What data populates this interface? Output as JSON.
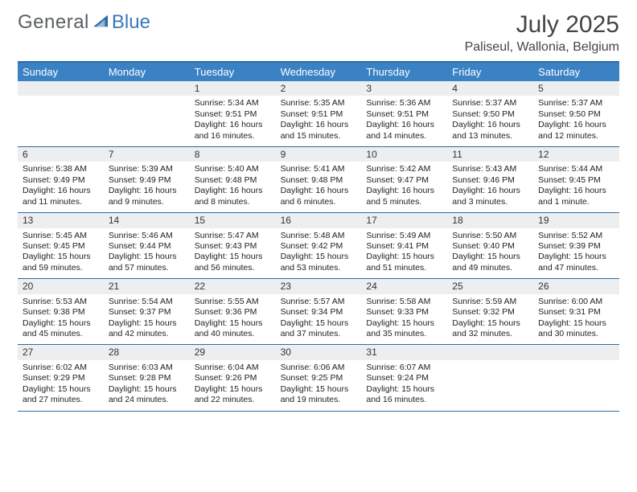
{
  "brand": {
    "part1": "General",
    "part2": "Blue"
  },
  "title": "July 2025",
  "location": "Paliseul, Wallonia, Belgium",
  "colors": {
    "header_bar": "#3a82c4",
    "rule": "#2f6aa8",
    "daynum_bg": "#eceeef",
    "text": "#222222",
    "brand_gray": "#5a5f63",
    "brand_blue": "#3a79b7"
  },
  "dow": [
    "Sunday",
    "Monday",
    "Tuesday",
    "Wednesday",
    "Thursday",
    "Friday",
    "Saturday"
  ],
  "weeks": [
    [
      null,
      null,
      {
        "n": "1",
        "sr": "5:34 AM",
        "ss": "9:51 PM",
        "dl": "16 hours and 16 minutes."
      },
      {
        "n": "2",
        "sr": "5:35 AM",
        "ss": "9:51 PM",
        "dl": "16 hours and 15 minutes."
      },
      {
        "n": "3",
        "sr": "5:36 AM",
        "ss": "9:51 PM",
        "dl": "16 hours and 14 minutes."
      },
      {
        "n": "4",
        "sr": "5:37 AM",
        "ss": "9:50 PM",
        "dl": "16 hours and 13 minutes."
      },
      {
        "n": "5",
        "sr": "5:37 AM",
        "ss": "9:50 PM",
        "dl": "16 hours and 12 minutes."
      }
    ],
    [
      {
        "n": "6",
        "sr": "5:38 AM",
        "ss": "9:49 PM",
        "dl": "16 hours and 11 minutes."
      },
      {
        "n": "7",
        "sr": "5:39 AM",
        "ss": "9:49 PM",
        "dl": "16 hours and 9 minutes."
      },
      {
        "n": "8",
        "sr": "5:40 AM",
        "ss": "9:48 PM",
        "dl": "16 hours and 8 minutes."
      },
      {
        "n": "9",
        "sr": "5:41 AM",
        "ss": "9:48 PM",
        "dl": "16 hours and 6 minutes."
      },
      {
        "n": "10",
        "sr": "5:42 AM",
        "ss": "9:47 PM",
        "dl": "16 hours and 5 minutes."
      },
      {
        "n": "11",
        "sr": "5:43 AM",
        "ss": "9:46 PM",
        "dl": "16 hours and 3 minutes."
      },
      {
        "n": "12",
        "sr": "5:44 AM",
        "ss": "9:45 PM",
        "dl": "16 hours and 1 minute."
      }
    ],
    [
      {
        "n": "13",
        "sr": "5:45 AM",
        "ss": "9:45 PM",
        "dl": "15 hours and 59 minutes."
      },
      {
        "n": "14",
        "sr": "5:46 AM",
        "ss": "9:44 PM",
        "dl": "15 hours and 57 minutes."
      },
      {
        "n": "15",
        "sr": "5:47 AM",
        "ss": "9:43 PM",
        "dl": "15 hours and 56 minutes."
      },
      {
        "n": "16",
        "sr": "5:48 AM",
        "ss": "9:42 PM",
        "dl": "15 hours and 53 minutes."
      },
      {
        "n": "17",
        "sr": "5:49 AM",
        "ss": "9:41 PM",
        "dl": "15 hours and 51 minutes."
      },
      {
        "n": "18",
        "sr": "5:50 AM",
        "ss": "9:40 PM",
        "dl": "15 hours and 49 minutes."
      },
      {
        "n": "19",
        "sr": "5:52 AM",
        "ss": "9:39 PM",
        "dl": "15 hours and 47 minutes."
      }
    ],
    [
      {
        "n": "20",
        "sr": "5:53 AM",
        "ss": "9:38 PM",
        "dl": "15 hours and 45 minutes."
      },
      {
        "n": "21",
        "sr": "5:54 AM",
        "ss": "9:37 PM",
        "dl": "15 hours and 42 minutes."
      },
      {
        "n": "22",
        "sr": "5:55 AM",
        "ss": "9:36 PM",
        "dl": "15 hours and 40 minutes."
      },
      {
        "n": "23",
        "sr": "5:57 AM",
        "ss": "9:34 PM",
        "dl": "15 hours and 37 minutes."
      },
      {
        "n": "24",
        "sr": "5:58 AM",
        "ss": "9:33 PM",
        "dl": "15 hours and 35 minutes."
      },
      {
        "n": "25",
        "sr": "5:59 AM",
        "ss": "9:32 PM",
        "dl": "15 hours and 32 minutes."
      },
      {
        "n": "26",
        "sr": "6:00 AM",
        "ss": "9:31 PM",
        "dl": "15 hours and 30 minutes."
      }
    ],
    [
      {
        "n": "27",
        "sr": "6:02 AM",
        "ss": "9:29 PM",
        "dl": "15 hours and 27 minutes."
      },
      {
        "n": "28",
        "sr": "6:03 AM",
        "ss": "9:28 PM",
        "dl": "15 hours and 24 minutes."
      },
      {
        "n": "29",
        "sr": "6:04 AM",
        "ss": "9:26 PM",
        "dl": "15 hours and 22 minutes."
      },
      {
        "n": "30",
        "sr": "6:06 AM",
        "ss": "9:25 PM",
        "dl": "15 hours and 19 minutes."
      },
      {
        "n": "31",
        "sr": "6:07 AM",
        "ss": "9:24 PM",
        "dl": "15 hours and 16 minutes."
      },
      null,
      null
    ]
  ],
  "labels": {
    "sunrise": "Sunrise:",
    "sunset": "Sunset:",
    "daylight": "Daylight:"
  }
}
